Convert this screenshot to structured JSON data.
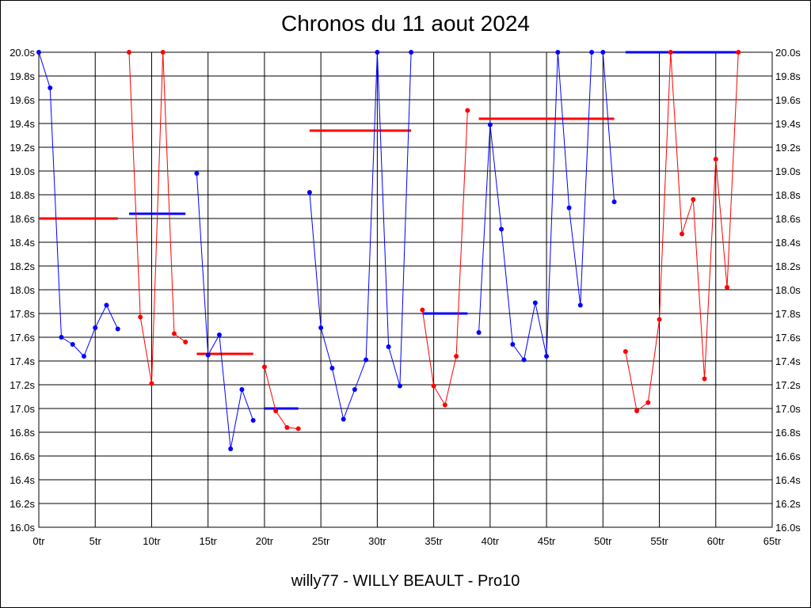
{
  "chart_data": {
    "type": "line",
    "title": "Chronos du 11 aout 2024",
    "subtitle": "willy77 - WILLY BEAULT - Pro10",
    "xlim": [
      0,
      65
    ],
    "ylim": [
      16.0,
      20.0
    ],
    "grid": true,
    "x_ticks": [
      "0tr",
      "5tr",
      "10tr",
      "15tr",
      "20tr",
      "25tr",
      "30tr",
      "35tr",
      "40tr",
      "45tr",
      "50tr",
      "55tr",
      "60tr",
      "65tr"
    ],
    "y_ticks": [
      "20.0s",
      "19.8s",
      "19.6s",
      "19.4s",
      "19.2s",
      "19.0s",
      "18.8s",
      "18.6s",
      "18.4s",
      "18.2s",
      "18.0s",
      "17.8s",
      "17.6s",
      "17.4s",
      "17.2s",
      "17.0s",
      "16.8s",
      "16.6s",
      "16.4s",
      "16.2s",
      "16.0s"
    ],
    "colors": {
      "blue": "#0000ff",
      "red": "#ff0000"
    },
    "series": [
      {
        "color": "#0000ff",
        "x": [
          0,
          1,
          2,
          3,
          4,
          5,
          6,
          7
        ],
        "y": [
          20.0,
          19.7,
          17.6,
          17.54,
          17.44,
          17.68,
          17.87,
          17.67
        ]
      },
      {
        "color": "#ff0000",
        "x": [
          8,
          9,
          10,
          11,
          12,
          13
        ],
        "y": [
          20.0,
          17.77,
          17.21,
          20.0,
          17.63,
          17.56
        ]
      },
      {
        "color": "#0000ff",
        "x": [
          14,
          15,
          16,
          17,
          18,
          19
        ],
        "y": [
          18.98,
          17.45,
          17.62,
          16.66,
          17.16,
          16.9
        ]
      },
      {
        "color": "#ff0000",
        "x": [
          20,
          21,
          22,
          23
        ],
        "y": [
          17.35,
          16.98,
          16.84,
          16.83
        ]
      },
      {
        "color": "#0000ff",
        "x": [
          24,
          25,
          26,
          27,
          28,
          29,
          30,
          31,
          32,
          33
        ],
        "y": [
          18.82,
          17.68,
          17.34,
          16.91,
          17.16,
          17.41,
          20.0,
          17.52,
          17.19,
          20.0
        ]
      },
      {
        "color": "#ff0000",
        "x": [
          34,
          35,
          36,
          37,
          38
        ],
        "y": [
          17.83,
          17.19,
          17.03,
          17.44,
          19.51
        ]
      },
      {
        "color": "#0000ff",
        "x": [
          39,
          40,
          41,
          42,
          43,
          44,
          45,
          46,
          47,
          48,
          49,
          50,
          51
        ],
        "y": [
          17.64,
          19.39,
          18.51,
          17.54,
          17.41,
          17.89,
          17.44,
          20.0,
          18.69,
          17.87,
          20.0,
          20.0,
          18.74
        ]
      },
      {
        "color": "#ff0000",
        "x": [
          52,
          53,
          54,
          55,
          56,
          57,
          58,
          59,
          60,
          61,
          62
        ],
        "y": [
          17.48,
          16.98,
          17.05,
          17.75,
          20.0,
          18.47,
          18.76,
          17.25,
          19.1,
          18.02,
          20.0
        ]
      }
    ],
    "average_lines": [
      {
        "color": "#ff0000",
        "x": [
          0,
          7
        ],
        "y": 18.6
      },
      {
        "color": "#0000ff",
        "x": [
          8,
          13
        ],
        "y": 18.64
      },
      {
        "color": "#ff0000",
        "x": [
          14,
          19
        ],
        "y": 17.46
      },
      {
        "color": "#0000ff",
        "x": [
          20,
          23
        ],
        "y": 17.0
      },
      {
        "color": "#ff0000",
        "x": [
          24,
          33
        ],
        "y": 19.34
      },
      {
        "color": "#0000ff",
        "x": [
          34,
          38
        ],
        "y": 17.8
      },
      {
        "color": "#ff0000",
        "x": [
          39,
          51
        ],
        "y": 19.44
      },
      {
        "color": "#0000ff",
        "x": [
          52,
          62
        ],
        "y": 20.0
      }
    ]
  }
}
